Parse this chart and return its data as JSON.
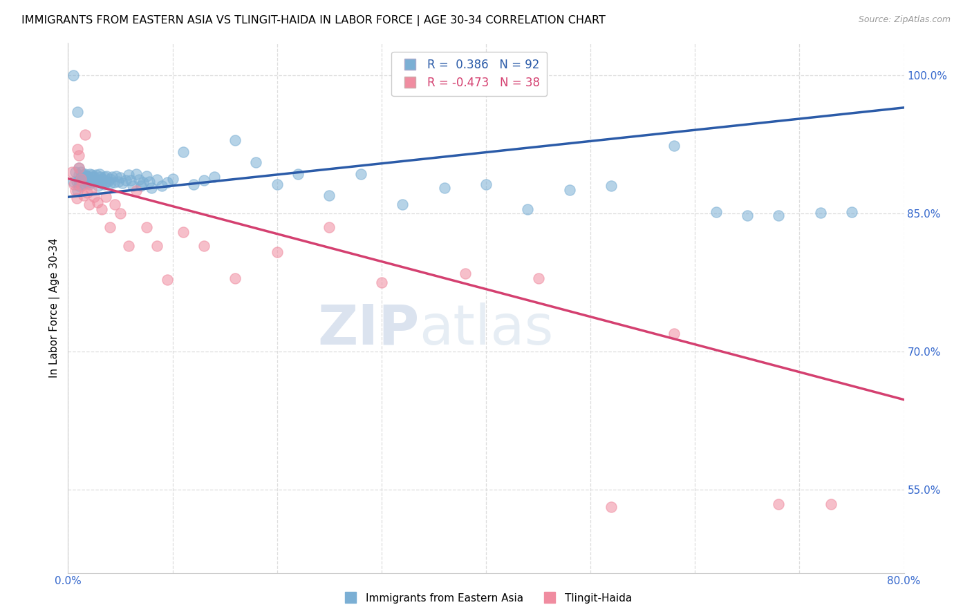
{
  "title": "IMMIGRANTS FROM EASTERN ASIA VS TLINGIT-HAIDA IN LABOR FORCE | AGE 30-34 CORRELATION CHART",
  "source": "Source: ZipAtlas.com",
  "ylabel": "In Labor Force | Age 30-34",
  "xmin": 0.0,
  "xmax": 0.8,
  "ymin": 0.46,
  "ymax": 1.035,
  "yticks": [
    0.55,
    0.7,
    0.85,
    1.0
  ],
  "ytick_labels": [
    "55.0%",
    "70.0%",
    "85.0%",
    "100.0%"
  ],
  "xtick_major": [
    0.0,
    0.1,
    0.2,
    0.3,
    0.4,
    0.5,
    0.6,
    0.7,
    0.8
  ],
  "xtick_labels": [
    "0.0%",
    "",
    "",
    "",
    "",
    "",
    "",
    "",
    "80.0%"
  ],
  "blue_R": 0.386,
  "blue_N": 92,
  "pink_R": -0.473,
  "pink_N": 38,
  "blue_color": "#7BAFD4",
  "pink_color": "#F08CA0",
  "blue_line_color": "#2B5BA8",
  "pink_line_color": "#D44070",
  "legend_label_blue": "Immigrants from Eastern Asia",
  "legend_label_pink": "Tlingit-Haida",
  "watermark_zip": "ZIP",
  "watermark_atlas": "atlas",
  "blue_line_x": [
    0.0,
    0.8
  ],
  "blue_line_y": [
    0.868,
    0.965
  ],
  "pink_line_x": [
    0.0,
    0.8
  ],
  "pink_line_y": [
    0.888,
    0.648
  ],
  "blue_scatter_x": [
    0.005,
    0.007,
    0.008,
    0.009,
    0.01,
    0.01,
    0.01,
    0.01,
    0.012,
    0.012,
    0.013,
    0.014,
    0.015,
    0.015,
    0.015,
    0.016,
    0.016,
    0.017,
    0.017,
    0.018,
    0.018,
    0.019,
    0.02,
    0.02,
    0.021,
    0.021,
    0.022,
    0.022,
    0.023,
    0.024,
    0.025,
    0.026,
    0.027,
    0.028,
    0.029,
    0.03,
    0.03,
    0.031,
    0.032,
    0.033,
    0.034,
    0.035,
    0.036,
    0.037,
    0.038,
    0.04,
    0.041,
    0.042,
    0.044,
    0.046,
    0.048,
    0.05,
    0.052,
    0.055,
    0.058,
    0.06,
    0.062,
    0.065,
    0.068,
    0.07,
    0.072,
    0.075,
    0.078,
    0.08,
    0.085,
    0.09,
    0.095,
    0.1,
    0.11,
    0.12,
    0.13,
    0.14,
    0.16,
    0.18,
    0.2,
    0.22,
    0.25,
    0.28,
    0.32,
    0.36,
    0.4,
    0.44,
    0.48,
    0.52,
    0.58,
    0.62,
    0.65,
    0.68,
    0.72,
    0.75,
    0.005,
    0.009
  ],
  "blue_scatter_y": [
    0.885,
    0.895,
    0.885,
    0.875,
    0.9,
    0.892,
    0.886,
    0.88,
    0.89,
    0.895,
    0.888,
    0.882,
    0.892,
    0.887,
    0.883,
    0.893,
    0.886,
    0.891,
    0.885,
    0.889,
    0.883,
    0.89,
    0.888,
    0.882,
    0.893,
    0.886,
    0.89,
    0.884,
    0.892,
    0.886,
    0.89,
    0.885,
    0.892,
    0.886,
    0.88,
    0.893,
    0.886,
    0.89,
    0.884,
    0.888,
    0.882,
    0.89,
    0.884,
    0.891,
    0.885,
    0.888,
    0.883,
    0.89,
    0.884,
    0.891,
    0.885,
    0.889,
    0.883,
    0.886,
    0.892,
    0.886,
    0.88,
    0.893,
    0.887,
    0.88,
    0.884,
    0.891,
    0.885,
    0.878,
    0.887,
    0.88,
    0.884,
    0.888,
    0.917,
    0.882,
    0.886,
    0.89,
    0.93,
    0.906,
    0.882,
    0.893,
    0.87,
    0.893,
    0.86,
    0.878,
    0.882,
    0.855,
    0.876,
    0.88,
    0.924,
    0.852,
    0.848,
    0.848,
    0.851,
    0.852,
    1.0,
    0.96
  ],
  "pink_scatter_x": [
    0.004,
    0.006,
    0.007,
    0.008,
    0.009,
    0.01,
    0.01,
    0.012,
    0.013,
    0.015,
    0.016,
    0.018,
    0.02,
    0.022,
    0.025,
    0.028,
    0.032,
    0.036,
    0.04,
    0.045,
    0.05,
    0.058,
    0.065,
    0.075,
    0.085,
    0.095,
    0.11,
    0.13,
    0.16,
    0.2,
    0.25,
    0.3,
    0.38,
    0.45,
    0.52,
    0.58,
    0.68,
    0.73
  ],
  "pink_scatter_y": [
    0.895,
    0.882,
    0.875,
    0.867,
    0.92,
    0.913,
    0.9,
    0.888,
    0.88,
    0.87,
    0.936,
    0.873,
    0.86,
    0.876,
    0.868,
    0.862,
    0.855,
    0.868,
    0.835,
    0.86,
    0.85,
    0.815,
    0.875,
    0.835,
    0.815,
    0.778,
    0.83,
    0.815,
    0.78,
    0.808,
    0.835,
    0.775,
    0.785,
    0.78,
    0.532,
    0.72,
    0.535,
    0.535
  ],
  "title_fontsize": 11.5,
  "axis_label_color": "#3366CC",
  "grid_color": "#DDDDDD",
  "background_color": "#FFFFFF"
}
